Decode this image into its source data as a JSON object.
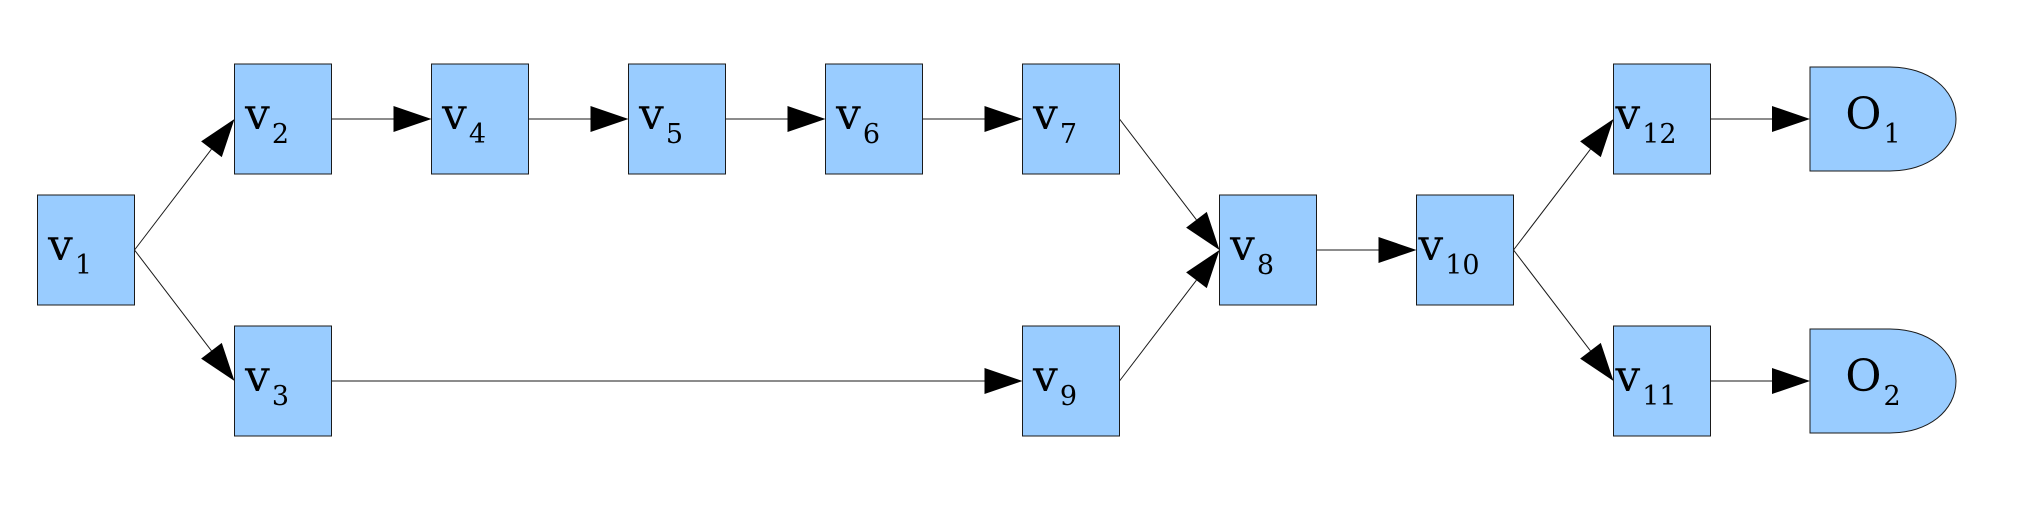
{
  "diagram": {
    "nodes": [
      {
        "id": "v1",
        "base": "v",
        "sub": "1",
        "shape": "rect"
      },
      {
        "id": "v2",
        "base": "v",
        "sub": "2",
        "shape": "rect"
      },
      {
        "id": "v3",
        "base": "v",
        "sub": "3",
        "shape": "rect"
      },
      {
        "id": "v4",
        "base": "v",
        "sub": "4",
        "shape": "rect"
      },
      {
        "id": "v5",
        "base": "v",
        "sub": "5",
        "shape": "rect"
      },
      {
        "id": "v6",
        "base": "v",
        "sub": "6",
        "shape": "rect"
      },
      {
        "id": "v7",
        "base": "v",
        "sub": "7",
        "shape": "rect"
      },
      {
        "id": "v8",
        "base": "v",
        "sub": "8",
        "shape": "rect"
      },
      {
        "id": "v9",
        "base": "v",
        "sub": "9",
        "shape": "rect"
      },
      {
        "id": "v10",
        "base": "v",
        "sub": "10",
        "shape": "rect"
      },
      {
        "id": "v11",
        "base": "v",
        "sub": "11",
        "shape": "rect"
      },
      {
        "id": "v12",
        "base": "v",
        "sub": "12",
        "shape": "rect"
      },
      {
        "id": "o1",
        "base": "O",
        "sub": "1",
        "shape": "output"
      },
      {
        "id": "o2",
        "base": "O",
        "sub": "2",
        "shape": "output"
      }
    ],
    "edges": [
      {
        "from": "v1",
        "to": "v2"
      },
      {
        "from": "v1",
        "to": "v3"
      },
      {
        "from": "v2",
        "to": "v4"
      },
      {
        "from": "v4",
        "to": "v5"
      },
      {
        "from": "v5",
        "to": "v6"
      },
      {
        "from": "v6",
        "to": "v7"
      },
      {
        "from": "v7",
        "to": "v8"
      },
      {
        "from": "v3",
        "to": "v9"
      },
      {
        "from": "v9",
        "to": "v8"
      },
      {
        "from": "v8",
        "to": "v10"
      },
      {
        "from": "v10",
        "to": "v12"
      },
      {
        "from": "v10",
        "to": "v11"
      },
      {
        "from": "v12",
        "to": "o1"
      },
      {
        "from": "v11",
        "to": "o2"
      }
    ],
    "colors": {
      "node_fill": "#99ccff",
      "node_stroke": "#1a1a1a",
      "edge": "#1a1a1a",
      "arrowhead": "#000000",
      "text": "#000000"
    }
  }
}
